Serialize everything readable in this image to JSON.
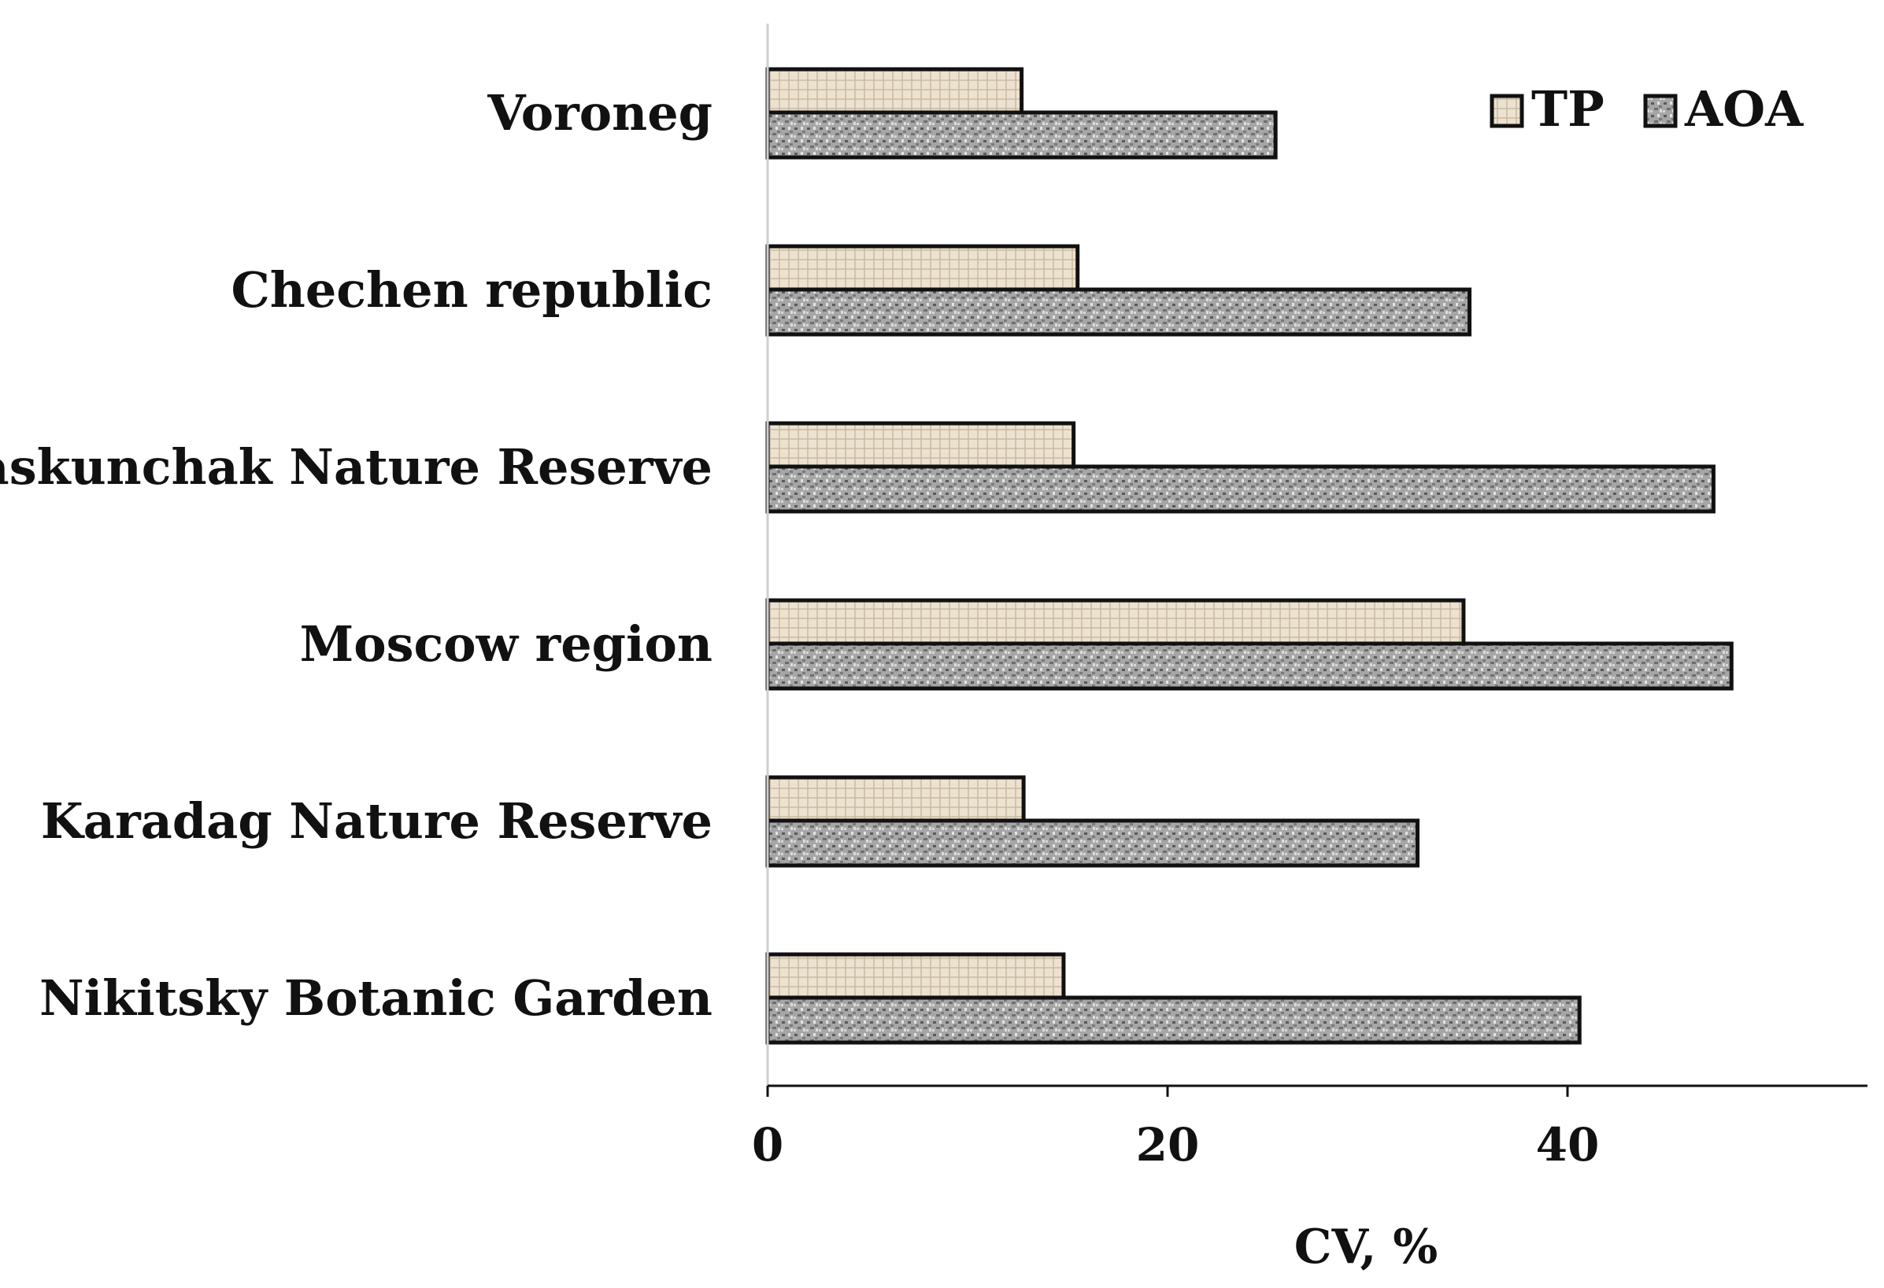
{
  "chart_data": {
    "type": "bar",
    "orientation": "horizontal",
    "title": "",
    "xlabel": "CV, %",
    "ylabel": "",
    "xlim": [
      0,
      55
    ],
    "xticks": [
      0,
      20,
      40
    ],
    "grid": false,
    "legend_position": "top-right",
    "categories": [
      "Voroneg",
      "Chechen republic",
      "Baskunchak Nature Reserve",
      "Moscow region",
      "Karadag Nature Reserve",
      "Nikitsky Botanic Garden"
    ],
    "series": [
      {
        "name": "TP",
        "color": "#e8dcc8",
        "values": [
          12.7,
          15.5,
          15.3,
          34.8,
          12.8,
          14.8
        ]
      },
      {
        "name": "AOA",
        "color": "#a0a0a0",
        "values": [
          25.4,
          35.1,
          47.3,
          48.2,
          32.5,
          40.6
        ]
      }
    ]
  }
}
